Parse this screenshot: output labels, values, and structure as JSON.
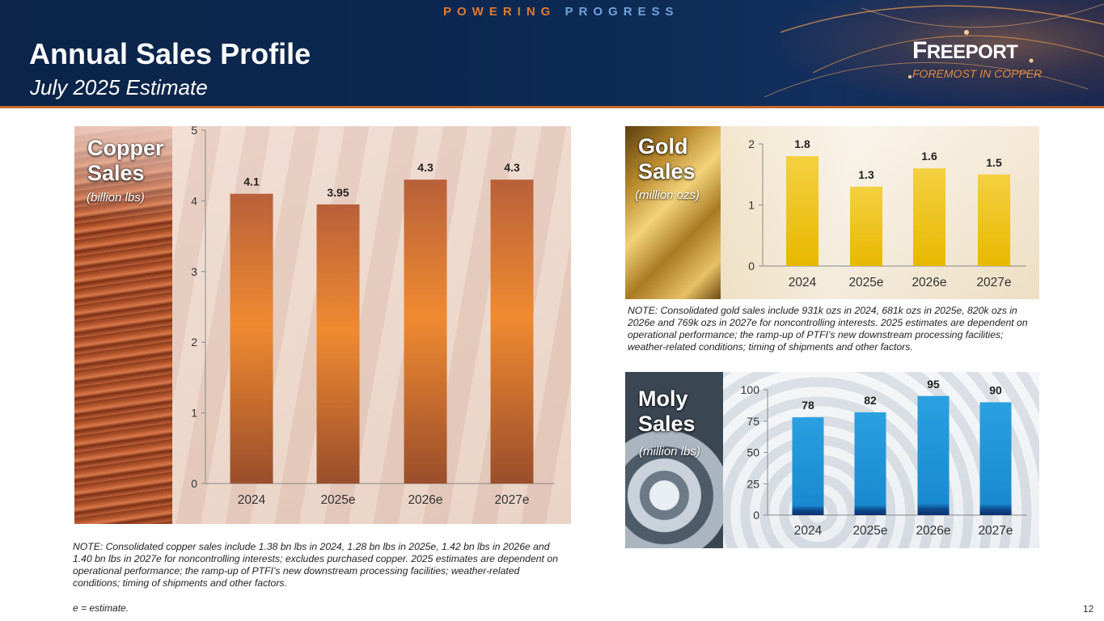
{
  "header": {
    "tagline_part1": "POWERING",
    "tagline_part2": "PROGRESS",
    "title": "Annual Sales Profile",
    "subtitle": "July 2025 Estimate",
    "logo_name_first": "F",
    "logo_name_rest": "REEPORT",
    "logo_tagline": "FOREMOST IN COPPER"
  },
  "copper": {
    "title_line1": "Copper",
    "title_line2": "Sales",
    "unit": "(billion lbs)",
    "note": "NOTE: Consolidated copper sales include 1.38 bn lbs in 2024, 1.28 bn lbs in 2025e, 1.42 bn lbs in 2026e and 1.40 bn lbs in 2027e for noncontrolling interests; excludes purchased copper. 2025 estimates are dependent on operational performance; the ramp-up of PTFI’s new downstream processing facilities; weather-related conditions; timing of shipments and other factors."
  },
  "gold": {
    "title_line1": "Gold",
    "title_line2": "Sales",
    "unit": "(million ozs)",
    "note": "NOTE: Consolidated gold sales include 931k ozs in 2024, 681k ozs in 2025e, 820k ozs in 2026e and 769k ozs in 2027e for noncontrolling interests. 2025 estimates are dependent on operational performance; the ramp-up of PTFI’s new downstream processing facilities; weather-related conditions; timing of shipments and other factors."
  },
  "moly": {
    "title_line1": "Moly",
    "title_line2": "Sales",
    "unit": "(million lbs)"
  },
  "footer": {
    "estimate_note": "e = estimate.",
    "page_number": "12"
  },
  "colors": {
    "copper_bar_top": "#b8603a",
    "copper_bar_mid": "#f08a30",
    "copper_bar_bottom": "#9a4e2c",
    "gold_bar_top": "#f3d040",
    "gold_bar_bottom": "#e8b800",
    "moly_bar_top": "#2aa0e0",
    "moly_bar_bottom": "#0a2e6e",
    "header_accent": "#e07a2e"
  },
  "chart_data": [
    {
      "id": "copper",
      "type": "bar",
      "categories": [
        "2024",
        "2025e",
        "2026e",
        "2027e"
      ],
      "values": [
        4.1,
        3.95,
        4.3,
        4.3
      ],
      "value_labels": [
        "4.1",
        "3.95",
        "4.3",
        "4.3"
      ],
      "yticks": [
        0,
        1,
        2,
        3,
        4,
        5
      ],
      "ylim": [
        0,
        5
      ],
      "grid": false
    },
    {
      "id": "gold",
      "type": "bar",
      "categories": [
        "2024",
        "2025e",
        "2026e",
        "2027e"
      ],
      "values": [
        1.8,
        1.3,
        1.6,
        1.5
      ],
      "value_labels": [
        "1.8",
        "1.3",
        "1.6",
        "1.5"
      ],
      "yticks": [
        0,
        1,
        2
      ],
      "ylim": [
        0,
        2
      ],
      "grid": false
    },
    {
      "id": "moly",
      "type": "bar",
      "categories": [
        "2024",
        "2025e",
        "2026e",
        "2027e"
      ],
      "values": [
        78,
        82,
        95,
        90
      ],
      "value_labels": [
        "78",
        "82",
        "95",
        "90"
      ],
      "yticks": [
        0,
        25,
        50,
        75,
        100
      ],
      "ylim": [
        0,
        100
      ],
      "grid": false
    }
  ]
}
